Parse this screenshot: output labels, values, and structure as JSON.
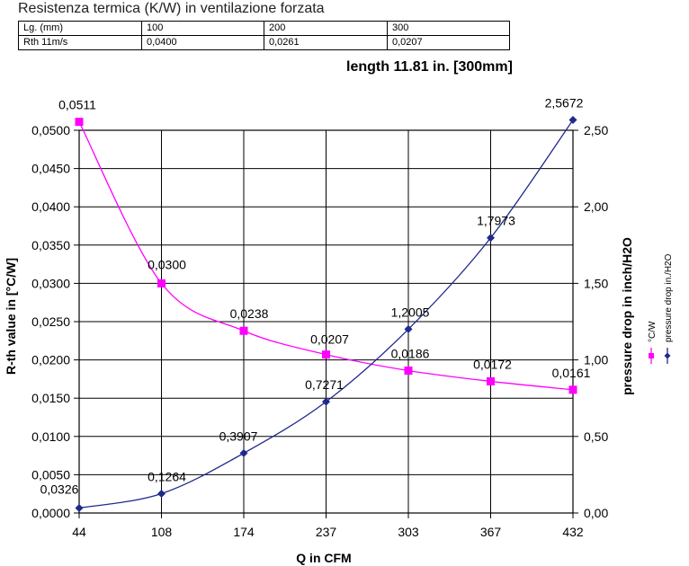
{
  "header": {
    "title": "Resistenza termica (K/W) in ventilazione forzata"
  },
  "spec_table": {
    "rows": [
      [
        "Lg. (mm)",
        "100",
        "200",
        "300"
      ],
      [
        "Rth 11m/s",
        "0,0400",
        "0,0261",
        "0,0207"
      ]
    ]
  },
  "chart_data": {
    "type": "line",
    "title": "length 11.81 in. [300mm]",
    "xlabel": "Q in CFM",
    "ylabel_left": "R-th value in [°C/W]",
    "ylabel_right": "pressure drop in inch/H2O",
    "categories": [
      "44",
      "108",
      "174",
      "237",
      "303",
      "367",
      "432"
    ],
    "y_left_range": [
      0,
      0.05
    ],
    "y_left_ticks": [
      "0,0000",
      "0,0050",
      "0,0100",
      "0,0150",
      "0,0200",
      "0,0250",
      "0,0300",
      "0,0350",
      "0,0400",
      "0,0450",
      "0,0500"
    ],
    "y_right_range": [
      0,
      2.5
    ],
    "y_right_ticks": [
      "0,00",
      "0,50",
      "1,00",
      "1,50",
      "2,00",
      "2,50"
    ],
    "grid": true,
    "series": [
      {
        "name": "°C/W",
        "axis": "left",
        "color": "#ff00ff",
        "marker": "square",
        "values": [
          0.0511,
          0.03,
          0.0238,
          0.0207,
          0.0186,
          0.0172,
          0.0161
        ],
        "labels": [
          "0,0511",
          "0,0300",
          "0,0238",
          "0,0207",
          "0,0186",
          "0,0172",
          "0,0161"
        ]
      },
      {
        "name": "pressure drop in./H2O",
        "axis": "right",
        "color": "#1f2a8c",
        "marker": "diamond",
        "values": [
          0.0326,
          0.1264,
          0.3907,
          0.7271,
          1.2005,
          1.7973,
          2.5672
        ],
        "labels": [
          "0,0326",
          "0,1264",
          "0,3907",
          "0,7271",
          "1,2005",
          "1,7973",
          "2,5672"
        ]
      }
    ]
  }
}
